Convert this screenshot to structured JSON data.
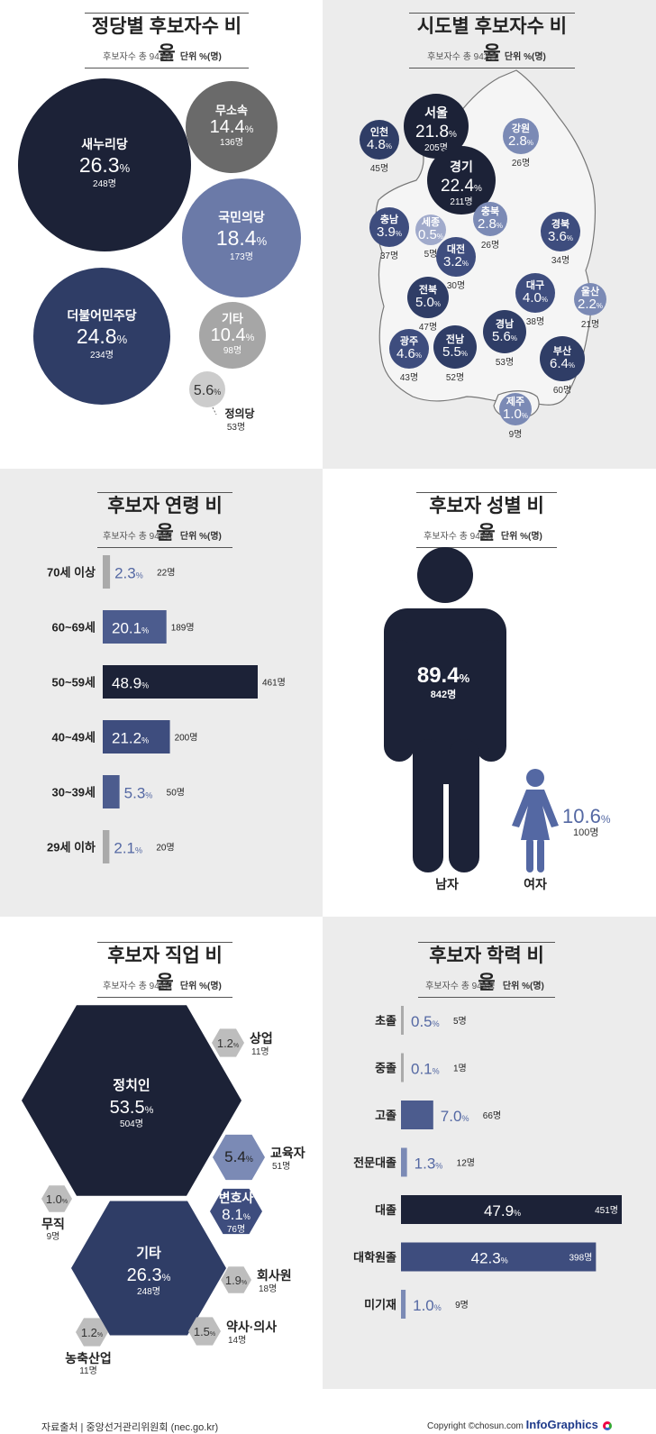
{
  "subtitle": {
    "total_label": "후보자수 총 942명",
    "unit_label": "단위 %(명)"
  },
  "party": {
    "title": "정당별 후보자수 비율",
    "items": [
      {
        "name": "새누리당",
        "pct": "26.3",
        "count": "248명",
        "color": "#1c2237",
        "text_color": "#ffffff"
      },
      {
        "name": "무소속",
        "pct": "14.4",
        "count": "136명",
        "color": "#6a6a6a",
        "text_color": "#ffffff"
      },
      {
        "name": "국민의당",
        "pct": "18.4",
        "count": "173명",
        "color": "#6b7aa8",
        "text_color": "#ffffff"
      },
      {
        "name": "더불어민주당",
        "pct": "24.8",
        "count": "234명",
        "color": "#2f3d66",
        "text_color": "#ffffff"
      },
      {
        "name": "기타",
        "pct": "10.4",
        "count": "98명",
        "color": "#a6a6a6",
        "text_color": "#ffffff"
      },
      {
        "name": "정의당",
        "pct": "5.6",
        "count": "53명",
        "color": "#cccccc",
        "text_color": "#333333"
      }
    ]
  },
  "region": {
    "title": "시도별 후보자수 비율",
    "items": [
      {
        "name": "서울",
        "pct": "21.8",
        "count": "205명",
        "color": "#1c2237"
      },
      {
        "name": "인천",
        "pct": "4.8",
        "count": "45명",
        "color": "#2f3d66"
      },
      {
        "name": "강원",
        "pct": "2.8",
        "count": "26명",
        "color": "#7b8ab5"
      },
      {
        "name": "경기",
        "pct": "22.4",
        "count": "211명",
        "color": "#1c2237"
      },
      {
        "name": "충남",
        "pct": "3.9",
        "count": "37명",
        "color": "#3e4d7e"
      },
      {
        "name": "세종",
        "pct": "0.5",
        "count": "5명",
        "color": "#a0aacb"
      },
      {
        "name": "충북",
        "pct": "2.8",
        "count": "26명",
        "color": "#7b8ab5"
      },
      {
        "name": "경북",
        "pct": "3.6",
        "count": "34명",
        "color": "#3e4d7e"
      },
      {
        "name": "대전",
        "pct": "3.2",
        "count": "30명",
        "color": "#3e4d7e"
      },
      {
        "name": "전북",
        "pct": "5.0",
        "count": "47명",
        "color": "#2f3d66"
      },
      {
        "name": "대구",
        "pct": "4.0",
        "count": "38명",
        "color": "#3e4d7e"
      },
      {
        "name": "울산",
        "pct": "2.2",
        "count": "21명",
        "color": "#7b8ab5"
      },
      {
        "name": "경남",
        "pct": "5.6",
        "count": "53명",
        "color": "#2f3d66"
      },
      {
        "name": "광주",
        "pct": "4.6",
        "count": "43명",
        "color": "#3e4d7e"
      },
      {
        "name": "전남",
        "pct": "5.5",
        "count": "52명",
        "color": "#2f3d66"
      },
      {
        "name": "부산",
        "pct": "6.4",
        "count": "60명",
        "color": "#2f3d66"
      },
      {
        "name": "제주",
        "pct": "1.0",
        "count": "9명",
        "color": "#7b8ab5"
      }
    ]
  },
  "age": {
    "title": "후보자 연령 비율",
    "items": [
      {
        "label": "70세 이상",
        "pct": "2.3",
        "count": "22명",
        "value": 2.3,
        "color": "#aaaaaa"
      },
      {
        "label": "60~69세",
        "pct": "20.1",
        "count": "189명",
        "value": 20.1,
        "color": "#4c5c8e"
      },
      {
        "label": "50~59세",
        "pct": "48.9",
        "count": "461명",
        "value": 48.9,
        "color": "#1c2237"
      },
      {
        "label": "40~49세",
        "pct": "21.2",
        "count": "200명",
        "value": 21.2,
        "color": "#3e4d7e"
      },
      {
        "label": "30~39세",
        "pct": "5.3",
        "count": "50명",
        "value": 5.3,
        "color": "#4c5c8e"
      },
      {
        "label": "29세 이하",
        "pct": "2.1",
        "count": "20명",
        "value": 2.1,
        "color": "#aaaaaa"
      }
    ]
  },
  "gender": {
    "title": "후보자 성별 비율",
    "male": {
      "label": "남자",
      "pct": "89.4",
      "count": "842명",
      "color": "#1c2237"
    },
    "female": {
      "label": "여자",
      "pct": "10.6",
      "count": "100명",
      "color": "#5468a3"
    }
  },
  "job": {
    "title": "후보자 직업 비율",
    "items": [
      {
        "name": "정치인",
        "pct": "53.5",
        "count": "504명",
        "color": "#1c2237"
      },
      {
        "name": "상업",
        "pct": "1.2",
        "count": "11명",
        "color": "#bdbdbd"
      },
      {
        "name": "교육자",
        "pct": "5.4",
        "count": "51명",
        "color": "#7b8ab5"
      },
      {
        "name": "변호사",
        "pct": "8.1",
        "count": "76명",
        "color": "#3e4d7e"
      },
      {
        "name": "무직",
        "pct": "1.0",
        "count": "9명",
        "color": "#bdbdbd"
      },
      {
        "name": "기타",
        "pct": "26.3",
        "count": "248명",
        "color": "#2f3d66"
      },
      {
        "name": "회사원",
        "pct": "1.9",
        "count": "18명",
        "color": "#bdbdbd"
      },
      {
        "name": "약사·의사",
        "pct": "1.5",
        "count": "14명",
        "color": "#bdbdbd"
      },
      {
        "name": "농축산업",
        "pct": "1.2",
        "count": "11명",
        "color": "#bdbdbd"
      }
    ]
  },
  "edu": {
    "title": "후보자 학력 비율",
    "items": [
      {
        "label": "초졸",
        "pct": "0.5",
        "count": "5명",
        "value": 0.5,
        "color": "#aaaaaa"
      },
      {
        "label": "중졸",
        "pct": "0.1",
        "count": "1명",
        "value": 0.1,
        "color": "#aaaaaa"
      },
      {
        "label": "고졸",
        "pct": "7.0",
        "count": "66명",
        "value": 7.0,
        "color": "#4c5c8e"
      },
      {
        "label": "전문대졸",
        "pct": "1.3",
        "count": "12명",
        "value": 1.3,
        "color": "#7b8ab5"
      },
      {
        "label": "대졸",
        "pct": "47.9",
        "count": "451명",
        "value": 47.9,
        "color": "#1c2237"
      },
      {
        "label": "대학원졸",
        "pct": "42.3",
        "count": "398명",
        "value": 42.3,
        "color": "#3e4d7e"
      },
      {
        "label": "미기재",
        "pct": "1.0",
        "count": "9명",
        "value": 1.0,
        "color": "#7b8ab5"
      }
    ]
  },
  "footer": {
    "source": "자료출처 | 중앙선거관리위원회 (nec.go.kr)",
    "copyright": "Copyright ©chosun.com",
    "brand": "InfoGraphics"
  },
  "chart_data": [
    {
      "type": "bubble",
      "title": "정당별 후보자수 비율",
      "categories": [
        "새누리당",
        "더불어민주당",
        "국민의당",
        "무소속",
        "기타",
        "정의당"
      ],
      "values": [
        26.3,
        24.8,
        18.4,
        14.4,
        10.4,
        5.6
      ],
      "counts": [
        248,
        234,
        173,
        136,
        98,
        53
      ]
    },
    {
      "type": "bubble-map",
      "title": "시도별 후보자수 비율",
      "categories": [
        "서울",
        "경기",
        "인천",
        "강원",
        "충남",
        "세종",
        "충북",
        "경북",
        "대전",
        "전북",
        "대구",
        "울산",
        "경남",
        "광주",
        "전남",
        "부산",
        "제주"
      ],
      "values": [
        21.8,
        22.4,
        4.8,
        2.8,
        3.9,
        0.5,
        2.8,
        3.6,
        3.2,
        5.0,
        4.0,
        2.2,
        5.6,
        4.6,
        5.5,
        6.4,
        1.0
      ],
      "counts": [
        205,
        211,
        45,
        26,
        37,
        5,
        26,
        34,
        30,
        47,
        38,
        21,
        53,
        43,
        52,
        60,
        9
      ]
    },
    {
      "type": "bar",
      "title": "후보자 연령 비율",
      "categories": [
        "70세 이상",
        "60~69세",
        "50~59세",
        "40~49세",
        "30~39세",
        "29세 이하"
      ],
      "values": [
        2.3,
        20.1,
        48.9,
        21.2,
        5.3,
        2.1
      ],
      "counts": [
        22,
        189,
        461,
        200,
        50,
        20
      ]
    },
    {
      "type": "pictogram",
      "title": "후보자 성별 비율",
      "categories": [
        "남자",
        "여자"
      ],
      "values": [
        89.4,
        10.6
      ],
      "counts": [
        842,
        100
      ]
    },
    {
      "type": "hexagon",
      "title": "후보자 직업 비율",
      "categories": [
        "정치인",
        "기타",
        "변호사",
        "교육자",
        "회사원",
        "약사·의사",
        "상업",
        "농축산업",
        "무직"
      ],
      "values": [
        53.5,
        26.3,
        8.1,
        5.4,
        1.9,
        1.5,
        1.2,
        1.2,
        1.0
      ],
      "counts": [
        504,
        248,
        76,
        51,
        18,
        14,
        11,
        11,
        9
      ]
    },
    {
      "type": "bar",
      "title": "후보자 학력 비율",
      "categories": [
        "초졸",
        "중졸",
        "고졸",
        "전문대졸",
        "대졸",
        "대학원졸",
        "미기재"
      ],
      "values": [
        0.5,
        0.1,
        7.0,
        1.3,
        47.9,
        42.3,
        1.0
      ],
      "counts": [
        5,
        1,
        66,
        12,
        451,
        398,
        9
      ]
    }
  ]
}
